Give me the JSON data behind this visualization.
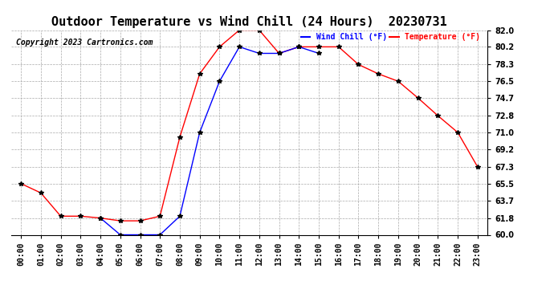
{
  "title": "Outdoor Temperature vs Wind Chill (24 Hours)  20230731",
  "copyright": "Copyright 2023 Cartronics.com",
  "legend_wind_chill": "Wind Chill (°F)",
  "legend_temperature": "Temperature (°F)",
  "hours": [
    "00:00",
    "01:00",
    "02:00",
    "03:00",
    "04:00",
    "05:00",
    "06:00",
    "07:00",
    "08:00",
    "09:00",
    "10:00",
    "11:00",
    "12:00",
    "13:00",
    "14:00",
    "15:00",
    "16:00",
    "17:00",
    "18:00",
    "19:00",
    "20:00",
    "21:00",
    "22:00",
    "23:00"
  ],
  "temperature": [
    65.5,
    64.5,
    62.0,
    62.0,
    61.8,
    61.5,
    61.5,
    62.0,
    70.5,
    77.3,
    80.2,
    82.0,
    82.0,
    79.5,
    80.2,
    80.2,
    80.2,
    78.3,
    77.3,
    76.5,
    74.7,
    72.8,
    71.0,
    67.3
  ],
  "wind_chill": [
    null,
    null,
    null,
    null,
    61.8,
    60.0,
    60.0,
    60.0,
    62.0,
    71.0,
    76.5,
    80.2,
    79.5,
    79.5,
    80.2,
    79.5,
    null,
    null,
    null,
    null,
    null,
    null,
    null,
    null
  ],
  "ylim": [
    60.0,
    82.0
  ],
  "yticks": [
    60.0,
    61.8,
    63.7,
    65.5,
    67.3,
    69.2,
    71.0,
    72.8,
    74.7,
    76.5,
    78.3,
    80.2,
    82.0
  ],
  "temp_color": "red",
  "wind_chill_color": "blue",
  "marker_color": "black",
  "grid_color": "#aaaaaa",
  "bg_color": "white",
  "title_fontsize": 11,
  "label_fontsize": 7,
  "copyright_fontsize": 7
}
